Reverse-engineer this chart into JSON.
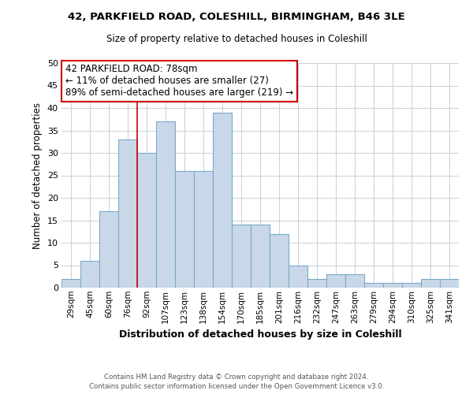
{
  "title1": "42, PARKFIELD ROAD, COLESHILL, BIRMINGHAM, B46 3LE",
  "title2": "Size of property relative to detached houses in Coleshill",
  "xlabel": "Distribution of detached houses by size in Coleshill",
  "ylabel": "Number of detached properties",
  "categories": [
    "29sqm",
    "45sqm",
    "60sqm",
    "76sqm",
    "92sqm",
    "107sqm",
    "123sqm",
    "138sqm",
    "154sqm",
    "170sqm",
    "185sqm",
    "201sqm",
    "216sqm",
    "232sqm",
    "247sqm",
    "263sqm",
    "279sqm",
    "294sqm",
    "310sqm",
    "325sqm",
    "341sqm"
  ],
  "values": [
    2,
    6,
    17,
    33,
    30,
    37,
    26,
    26,
    39,
    14,
    14,
    12,
    5,
    2,
    3,
    3,
    1,
    1,
    1,
    2,
    2
  ],
  "bar_color": "#c8d8e8",
  "bar_edge_color": "#7aaac8",
  "property_line_index": 3,
  "annotation_text": "42 PARKFIELD ROAD: 78sqm\n← 11% of detached houses are smaller (27)\n89% of semi-detached houses are larger (219) →",
  "annotation_box_color": "#ffffff",
  "annotation_box_edge_color": "#cc0000",
  "ylim": [
    0,
    50
  ],
  "yticks": [
    0,
    5,
    10,
    15,
    20,
    25,
    30,
    35,
    40,
    45,
    50
  ],
  "footer": "Contains HM Land Registry data © Crown copyright and database right 2024.\nContains public sector information licensed under the Open Government Licence v3.0.",
  "bg_color": "#ffffff",
  "grid_color": "#c8d0d8"
}
